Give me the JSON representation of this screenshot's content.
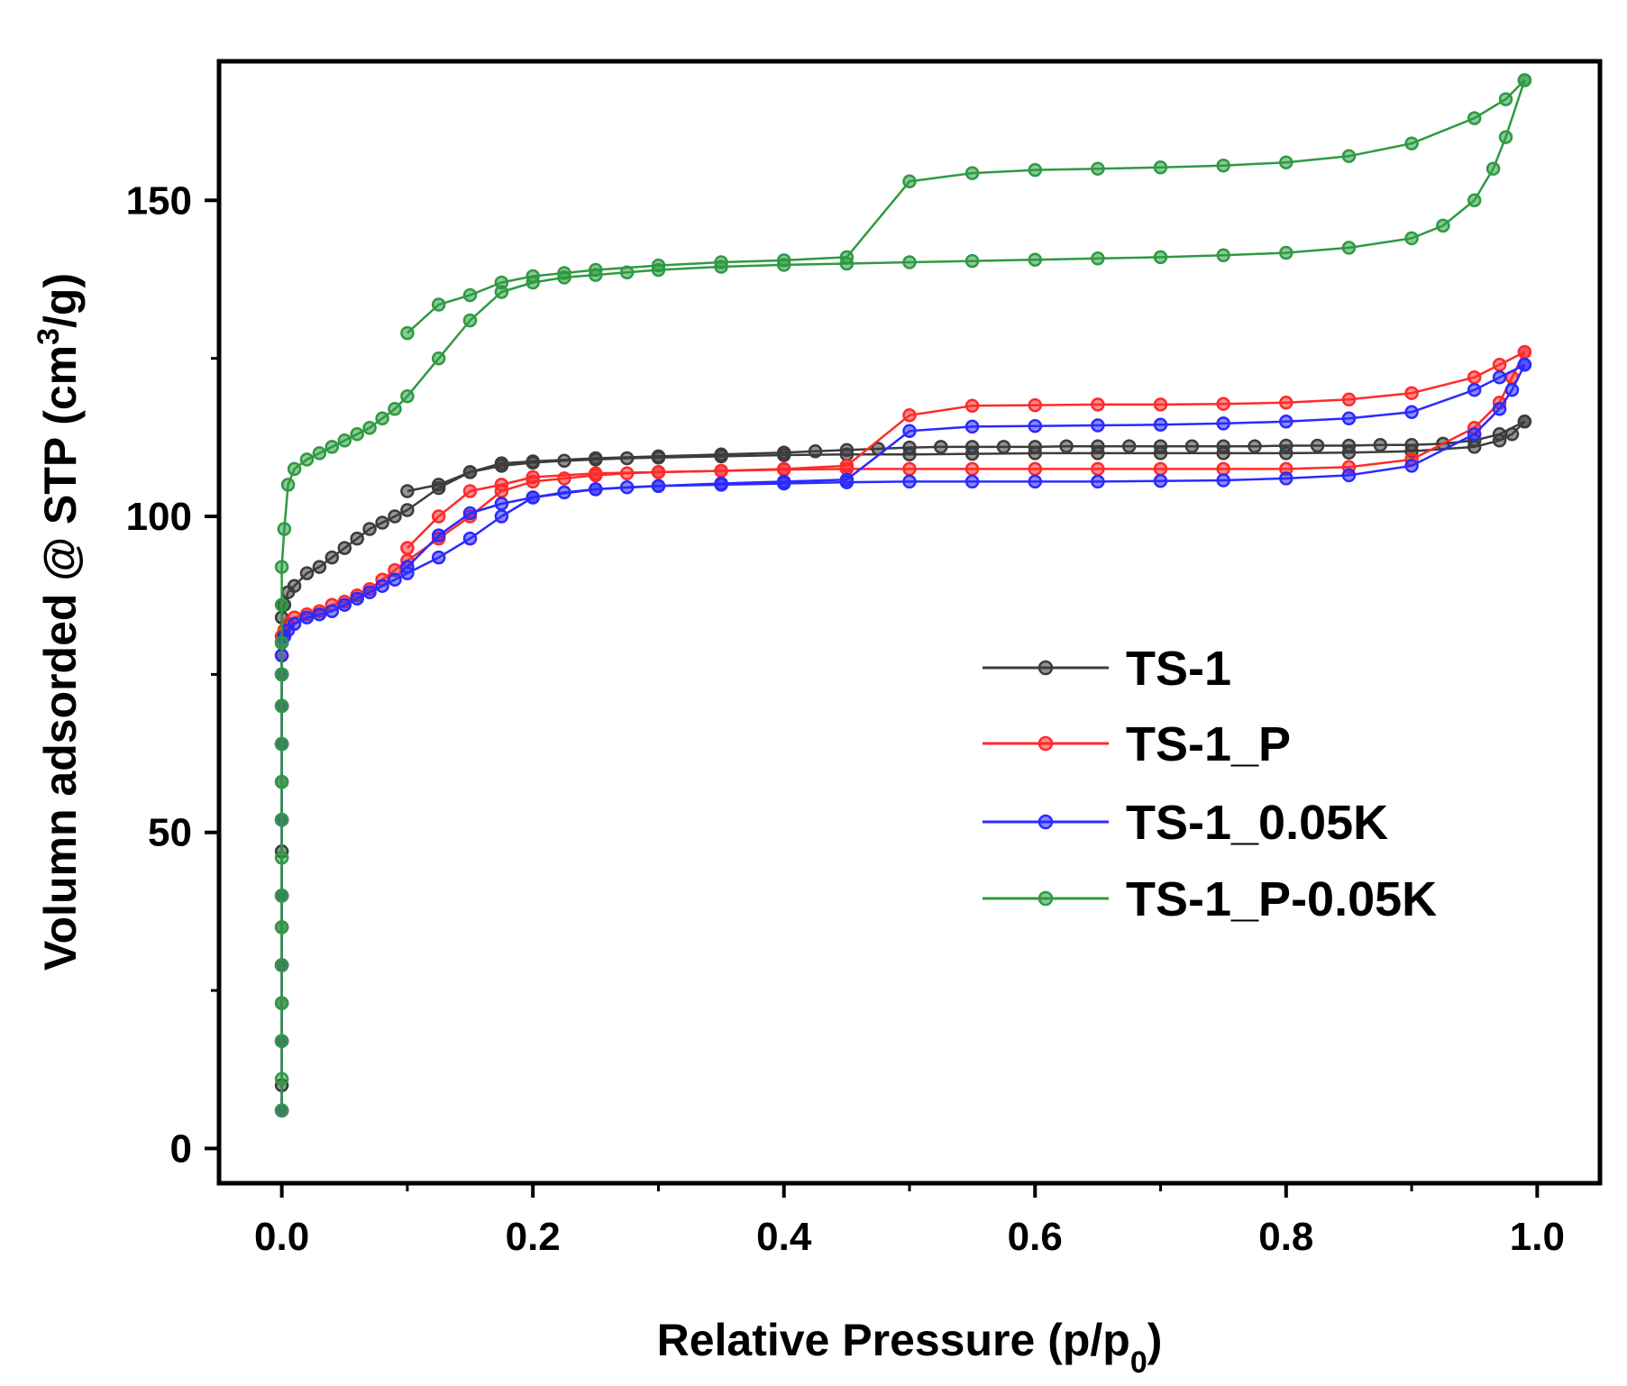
{
  "chart_data": {
    "type": "line",
    "title": "",
    "xlabel": "Relative Pressure (p/p",
    "xlabel_sub": "0",
    "xlabel_end": ")",
    "ylabel": "Volumn adsorded @ STP (cm",
    "ylabel_sup": "3",
    "ylabel_end": "/g)",
    "xlim": [
      -0.05,
      1.05
    ],
    "ylim": [
      -5.5,
      172
    ],
    "xticks": [
      0.0,
      0.2,
      0.4,
      0.6,
      0.8,
      1.0
    ],
    "xtick_labels": [
      "0.0",
      "0.2",
      "0.4",
      "0.6",
      "0.8",
      "1.0"
    ],
    "yticks": [
      0,
      50,
      100,
      150
    ],
    "ytick_labels": [
      "0",
      "50",
      "100",
      "150"
    ],
    "grid": false,
    "legend_position": "center-right",
    "series": [
      {
        "name": "TS-1",
        "color": "#3c3c3c",
        "adsorption": {
          "x": [
            0.0,
            0.0,
            0.0,
            0.0,
            0.0,
            0.0,
            0.0,
            0.0,
            0.0,
            0.0,
            0.0,
            0.0,
            0.0,
            0.0,
            0.0,
            0.002,
            0.005,
            0.01,
            0.02,
            0.03,
            0.04,
            0.05,
            0.06,
            0.07,
            0.08,
            0.09,
            0.1,
            0.125,
            0.15,
            0.175,
            0.2,
            0.225,
            0.25,
            0.275,
            0.3,
            0.35,
            0.4,
            0.45,
            0.5,
            0.55,
            0.6,
            0.65,
            0.7,
            0.75,
            0.8,
            0.85,
            0.9,
            0.95,
            0.97,
            0.98,
            0.99
          ],
          "y": [
            6,
            10,
            17,
            23,
            29,
            35,
            40,
            47,
            52,
            58,
            64,
            70,
            75,
            81,
            84,
            86,
            88,
            89,
            91,
            92,
            93.5,
            95,
            96.5,
            98,
            99,
            100,
            101,
            104.5,
            107,
            108,
            108.5,
            108.8,
            109,
            109.2,
            109.3,
            109.5,
            109.7,
            109.8,
            109.8,
            109.9,
            110,
            110,
            110,
            110,
            110,
            110.1,
            110.3,
            111,
            112,
            113,
            115
          ]
        },
        "desorption": {
          "x": [
            0.99,
            0.97,
            0.95,
            0.925,
            0.9,
            0.875,
            0.85,
            0.825,
            0.8,
            0.775,
            0.75,
            0.725,
            0.7,
            0.675,
            0.65,
            0.625,
            0.6,
            0.575,
            0.55,
            0.525,
            0.5,
            0.475,
            0.45,
            0.425,
            0.4,
            0.35,
            0.3,
            0.25,
            0.2,
            0.175,
            0.15,
            0.125,
            0.1
          ],
          "y": [
            115,
            113,
            112,
            111.5,
            111.3,
            111.3,
            111.2,
            111.2,
            111.2,
            111.1,
            111.1,
            111.1,
            111.1,
            111.1,
            111.1,
            111.1,
            111,
            111,
            111,
            111,
            110.9,
            110.7,
            110.5,
            110.3,
            110.1,
            109.8,
            109.5,
            109.2,
            108.7,
            108.4,
            107,
            105,
            104
          ]
        }
      },
      {
        "name": "TS-1_P",
        "color": "#ff2a2a",
        "adsorption": {
          "x": [
            0.0,
            0.0,
            0.0,
            0.0,
            0.0,
            0.0,
            0.0,
            0.0,
            0.0,
            0.0,
            0.0,
            0.002,
            0.005,
            0.01,
            0.02,
            0.03,
            0.04,
            0.05,
            0.06,
            0.07,
            0.08,
            0.09,
            0.1,
            0.125,
            0.15,
            0.175,
            0.2,
            0.225,
            0.25,
            0.275,
            0.3,
            0.35,
            0.4,
            0.45,
            0.5,
            0.55,
            0.6,
            0.65,
            0.7,
            0.75,
            0.8,
            0.85,
            0.9,
            0.95,
            0.97,
            0.98,
            0.99
          ],
          "y": [
            6,
            17,
            29,
            40,
            52,
            64,
            70,
            75,
            78,
            80,
            81,
            82,
            83,
            84,
            84.5,
            85,
            86,
            86.5,
            87.5,
            88.5,
            90,
            91.5,
            93,
            96.5,
            100,
            104,
            105.5,
            106,
            106.5,
            106.8,
            107,
            107.2,
            107.4,
            107.5,
            107.5,
            107.5,
            107.5,
            107.5,
            107.5,
            107.5,
            107.5,
            107.8,
            109,
            114,
            118,
            122,
            126
          ]
        },
        "desorption": {
          "x": [
            0.99,
            0.97,
            0.95,
            0.9,
            0.85,
            0.8,
            0.75,
            0.7,
            0.65,
            0.6,
            0.55,
            0.5,
            0.45,
            0.4,
            0.35,
            0.3,
            0.25,
            0.2,
            0.175,
            0.15,
            0.125,
            0.1
          ],
          "y": [
            126,
            124,
            122,
            119.5,
            118.5,
            118,
            117.8,
            117.7,
            117.7,
            117.6,
            117.5,
            116,
            108,
            107.5,
            107.2,
            107,
            106.8,
            106.2,
            105,
            104,
            100,
            95
          ]
        }
      },
      {
        "name": "TS-1_0.05K",
        "color": "#2a2aff",
        "adsorption": {
          "x": [
            0.0,
            0.0,
            0.0,
            0.0,
            0.0,
            0.0,
            0.0,
            0.0,
            0.0,
            0.0,
            0.002,
            0.005,
            0.01,
            0.02,
            0.03,
            0.04,
            0.05,
            0.06,
            0.07,
            0.08,
            0.09,
            0.1,
            0.125,
            0.15,
            0.175,
            0.2,
            0.225,
            0.25,
            0.275,
            0.3,
            0.35,
            0.4,
            0.45,
            0.5,
            0.55,
            0.6,
            0.65,
            0.7,
            0.75,
            0.8,
            0.85,
            0.9,
            0.95,
            0.97,
            0.98,
            0.99
          ],
          "y": [
            6,
            17,
            29,
            40,
            52,
            64,
            70,
            75,
            78,
            80,
            81,
            82,
            83,
            84,
            84.5,
            85,
            86,
            87,
            88,
            89,
            90,
            91,
            93.5,
            96.5,
            100,
            103,
            103.8,
            104.3,
            104.6,
            104.8,
            105,
            105.2,
            105.4,
            105.5,
            105.5,
            105.5,
            105.5,
            105.6,
            105.7,
            106,
            106.5,
            108,
            113,
            117,
            120,
            124
          ]
        },
        "desorption": {
          "x": [
            0.99,
            0.97,
            0.95,
            0.9,
            0.85,
            0.8,
            0.75,
            0.7,
            0.65,
            0.6,
            0.55,
            0.5,
            0.45,
            0.4,
            0.35,
            0.3,
            0.25,
            0.2,
            0.175,
            0.15,
            0.125,
            0.1
          ],
          "y": [
            124,
            122,
            120,
            116.5,
            115.5,
            115,
            114.7,
            114.5,
            114.4,
            114.3,
            114.2,
            113.5,
            105.8,
            105.5,
            105.2,
            104.8,
            104.3,
            103,
            102,
            100.5,
            97,
            92
          ]
        }
      },
      {
        "name": "TS-1_P-0.05K",
        "color": "#2e9a42",
        "adsorption": {
          "x": [
            0.0,
            0.0,
            0.0,
            0.0,
            0.0,
            0.0,
            0.0,
            0.0,
            0.0,
            0.0,
            0.0,
            0.0,
            0.0,
            0.0,
            0.0,
            0.0,
            0.002,
            0.005,
            0.01,
            0.02,
            0.03,
            0.04,
            0.05,
            0.06,
            0.07,
            0.08,
            0.09,
            0.1,
            0.125,
            0.15,
            0.175,
            0.2,
            0.225,
            0.25,
            0.275,
            0.3,
            0.35,
            0.4,
            0.45,
            0.5,
            0.55,
            0.6,
            0.65,
            0.7,
            0.75,
            0.8,
            0.85,
            0.9,
            0.925,
            0.95,
            0.965,
            0.975,
            0.99
          ],
          "y": [
            6,
            11,
            17,
            23,
            29,
            35,
            40,
            46,
            52,
            58,
            64,
            70,
            75,
            80,
            86,
            92,
            98,
            105,
            107.5,
            109,
            110,
            111,
            112,
            113,
            114,
            115.5,
            117,
            119,
            125,
            131,
            135.5,
            137,
            137.8,
            138.2,
            138.6,
            139,
            139.5,
            139.8,
            140,
            140.2,
            140.4,
            140.6,
            140.8,
            141,
            141.3,
            141.7,
            142.5,
            144,
            146,
            150,
            155,
            160,
            169
          ]
        },
        "desorption": {
          "x": [
            0.99,
            0.975,
            0.95,
            0.9,
            0.85,
            0.8,
            0.75,
            0.7,
            0.65,
            0.6,
            0.55,
            0.5,
            0.45,
            0.4,
            0.35,
            0.3,
            0.25,
            0.225,
            0.2,
            0.175,
            0.15,
            0.125,
            0.1
          ],
          "y": [
            169,
            166,
            163,
            159,
            157,
            156,
            155.5,
            155.2,
            155,
            154.8,
            154.3,
            153,
            141,
            140.5,
            140.2,
            139.7,
            139,
            138.5,
            138,
            137,
            135,
            133.5,
            129
          ]
        }
      }
    ]
  }
}
